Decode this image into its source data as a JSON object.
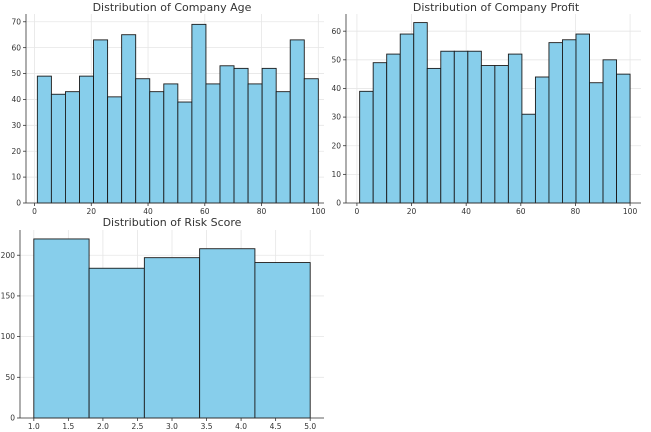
{
  "figure": {
    "bar_color": "#87ceeb",
    "edge_color": "#1a1a1a",
    "grid": true
  },
  "chart_data": [
    {
      "type": "bar",
      "title": "Distribution of Company Age",
      "xlabel": "",
      "ylabel": "",
      "xlim": [
        -3,
        102
      ],
      "ylim": [
        0,
        73
      ],
      "xticks": [
        0,
        20,
        40,
        60,
        80,
        100
      ],
      "yticks": [
        0,
        10,
        20,
        30,
        40,
        50,
        60,
        70
      ],
      "bin_edges": [
        1,
        5.95,
        10.9,
        15.85,
        20.8,
        25.75,
        30.7,
        35.65,
        40.6,
        45.55,
        50.5,
        55.45,
        60.4,
        65.35,
        70.3,
        75.25,
        80.2,
        85.15,
        90.1,
        95.05,
        100
      ],
      "values": [
        49,
        42,
        43,
        49,
        63,
        41,
        65,
        48,
        43,
        46,
        39,
        69,
        46,
        53,
        52,
        46,
        52,
        43,
        63,
        48
      ]
    },
    {
      "type": "bar",
      "title": "Distribution of Company Profit",
      "xlabel": "",
      "ylabel": "",
      "xlim": [
        -4,
        104
      ],
      "ylim": [
        0,
        66
      ],
      "xticks": [
        0,
        20,
        40,
        60,
        80,
        100
      ],
      "yticks": [
        0,
        10,
        20,
        30,
        40,
        50,
        60
      ],
      "bin_edges": [
        1,
        5.95,
        10.9,
        15.85,
        20.8,
        25.75,
        30.7,
        35.65,
        40.6,
        45.55,
        50.5,
        55.45,
        60.4,
        65.35,
        70.3,
        75.25,
        80.2,
        85.15,
        90.1,
        95.05,
        100
      ],
      "values": [
        39,
        49,
        52,
        59,
        63,
        47,
        53,
        53,
        53,
        48,
        48,
        52,
        31,
        44,
        56,
        57,
        59,
        42,
        50,
        45
      ]
    },
    {
      "type": "bar",
      "title": "Distribution of Risk Score",
      "xlabel": "",
      "ylabel": "",
      "xlim": [
        0.8,
        5.2
      ],
      "ylim": [
        0,
        231
      ],
      "xticks": [
        "1.0",
        "1.5",
        "2.0",
        "2.5",
        "3.0",
        "3.5",
        "4.0",
        "4.5",
        "5.0"
      ],
      "yticks": [
        0,
        50,
        100,
        150,
        200
      ],
      "bin_edges": [
        1.0,
        1.8,
        2.6,
        3.4,
        4.2,
        5.0
      ],
      "values": [
        220,
        184,
        197,
        208,
        191
      ]
    }
  ]
}
